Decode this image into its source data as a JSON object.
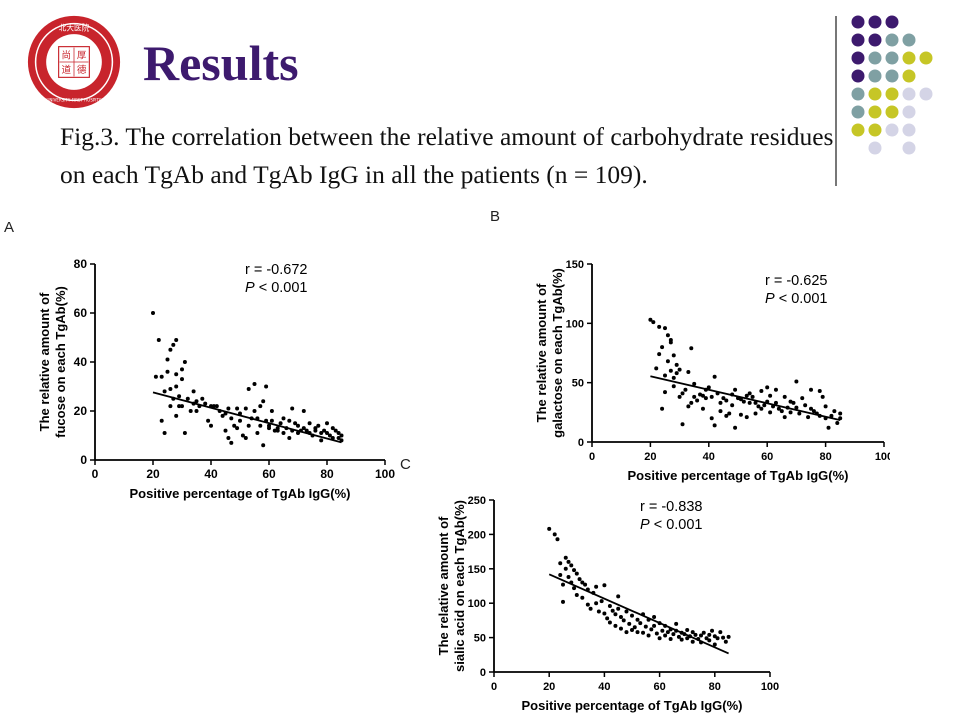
{
  "header": {
    "title": "Results",
    "caption": "Fig.3. The correlation between the relative amount of carbohydrate residues on each TgAb and TgAb IgG in all the patients (n = 109).",
    "logo": {
      "text_top": "北大医院",
      "center_chars": [
        "尚",
        "厚",
        "道",
        "德"
      ],
      "ring_text": "PEKING UNIVERSITY FIRST HOSPITAL ·1915·"
    },
    "panel_labels": [
      "A",
      "B",
      "C"
    ]
  },
  "decor": {
    "vertical_rule_color": "#777777",
    "dot_grid": [
      [
        "#3d1a6e",
        "#3d1a6e",
        "#3d1a6e",
        "",
        ""
      ],
      [
        "#3d1a6e",
        "#3d1a6e",
        "#7fa0a3",
        "#7fa0a3",
        ""
      ],
      [
        "#3d1a6e",
        "#7fa0a3",
        "#7fa0a3",
        "#c6c626",
        "#c6c626"
      ],
      [
        "#3d1a6e",
        "#7fa0a3",
        "#7fa0a3",
        "#c6c626",
        ""
      ],
      [
        "#7fa0a3",
        "#c6c626",
        "#c6c626",
        "#d4d4e6",
        "#d4d4e6"
      ],
      [
        "#7fa0a3",
        "#c6c626",
        "#c6c626",
        "#d4d4e6",
        ""
      ],
      [
        "#c6c626",
        "#c6c626",
        "#d4d4e6",
        "#d4d4e6",
        ""
      ],
      [
        "",
        "#d4d4e6",
        "",
        "#d4d4e6",
        ""
      ]
    ]
  },
  "chart_data": [
    {
      "type": "scatter",
      "panel": "A",
      "xlabel": "Positive percentage of TgAb IgG(%)",
      "ylabel": [
        "The relative amount of",
        "fucose on each TgAb(%)"
      ],
      "xlim": [
        0,
        100
      ],
      "ylim": [
        0,
        80
      ],
      "xticks": [
        0,
        20,
        40,
        60,
        80,
        100
      ],
      "yticks": [
        0,
        20,
        40,
        60,
        80
      ],
      "annotation": {
        "r_text": "r = -0.672",
        "p_label": "P",
        "p_text": " < 0.001"
      },
      "fit_line": [
        [
          20,
          27.6
        ],
        [
          85,
          7.2
        ]
      ],
      "points": [
        [
          20,
          60
        ],
        [
          21,
          34
        ],
        [
          22,
          49
        ],
        [
          23,
          34
        ],
        [
          23,
          16
        ],
        [
          24,
          28
        ],
        [
          24,
          11
        ],
        [
          25,
          41
        ],
        [
          25,
          36
        ],
        [
          26,
          45
        ],
        [
          26,
          29
        ],
        [
          26,
          22
        ],
        [
          27,
          25
        ],
        [
          27,
          47
        ],
        [
          28,
          49
        ],
        [
          28,
          35
        ],
        [
          28,
          30
        ],
        [
          28,
          18
        ],
        [
          29,
          26
        ],
        [
          29,
          22
        ],
        [
          30,
          37
        ],
        [
          30,
          33
        ],
        [
          30,
          22
        ],
        [
          31,
          40
        ],
        [
          31,
          11
        ],
        [
          32,
          25
        ],
        [
          33,
          20
        ],
        [
          34,
          23
        ],
        [
          34,
          28
        ],
        [
          35,
          24
        ],
        [
          35,
          20
        ],
        [
          36,
          22
        ],
        [
          37,
          25
        ],
        [
          38,
          23
        ],
        [
          39,
          16
        ],
        [
          40,
          22
        ],
        [
          40,
          14
        ],
        [
          41,
          22
        ],
        [
          42,
          22
        ],
        [
          43,
          20
        ],
        [
          44,
          18
        ],
        [
          45,
          12
        ],
        [
          45,
          19
        ],
        [
          46,
          21
        ],
        [
          46,
          9
        ],
        [
          47,
          17
        ],
        [
          47,
          7
        ],
        [
          48,
          14
        ],
        [
          49,
          13
        ],
        [
          49,
          21
        ],
        [
          50,
          16
        ],
        [
          50,
          19
        ],
        [
          51,
          10
        ],
        [
          52,
          9
        ],
        [
          52,
          21
        ],
        [
          53,
          29
        ],
        [
          53,
          14
        ],
        [
          54,
          17
        ],
        [
          55,
          20
        ],
        [
          55,
          31
        ],
        [
          56,
          17
        ],
        [
          56,
          11
        ],
        [
          57,
          22
        ],
        [
          57,
          14
        ],
        [
          58,
          24
        ],
        [
          58,
          6
        ],
        [
          59,
          30
        ],
        [
          59,
          16
        ],
        [
          60,
          14
        ],
        [
          60,
          13
        ],
        [
          61,
          16
        ],
        [
          61,
          20
        ],
        [
          62,
          12
        ],
        [
          63,
          12
        ],
        [
          63,
          13
        ],
        [
          64,
          15
        ],
        [
          65,
          17
        ],
        [
          65,
          11
        ],
        [
          66,
          13
        ],
        [
          67,
          9
        ],
        [
          67,
          16
        ],
        [
          68,
          21
        ],
        [
          68,
          12
        ],
        [
          69,
          15
        ],
        [
          70,
          14
        ],
        [
          70,
          11
        ],
        [
          71,
          12
        ],
        [
          72,
          20
        ],
        [
          72,
          13
        ],
        [
          73,
          12
        ],
        [
          74,
          11
        ],
        [
          74,
          15
        ],
        [
          75,
          10
        ],
        [
          76,
          12
        ],
        [
          76,
          13
        ],
        [
          77,
          14
        ],
        [
          78,
          11
        ],
        [
          78,
          8
        ],
        [
          79,
          12
        ],
        [
          80,
          11
        ],
        [
          80,
          15
        ],
        [
          81,
          10
        ],
        [
          82,
          9
        ],
        [
          82,
          13
        ],
        [
          83,
          12
        ],
        [
          84,
          9
        ],
        [
          84,
          11
        ],
        [
          85,
          10
        ],
        [
          85,
          8
        ]
      ]
    },
    {
      "type": "scatter",
      "panel": "B",
      "xlabel": "Positive percentage of TgAb IgG(%)",
      "ylabel": [
        "The relative amount of",
        "galactose on each TgAb(%)"
      ],
      "xlim": [
        0,
        100
      ],
      "ylim": [
        0,
        150
      ],
      "xticks": [
        0,
        20,
        40,
        60,
        80,
        100
      ],
      "yticks": [
        0,
        50,
        100,
        150
      ],
      "annotation": {
        "r_text": "r = -0.625",
        "p_label": "P",
        "p_text": " < 0.001"
      },
      "fit_line": [
        [
          20,
          55.4
        ],
        [
          85,
          18.4
        ]
      ],
      "points": [
        [
          20,
          103
        ],
        [
          21,
          101
        ],
        [
          22,
          62
        ],
        [
          23,
          97
        ],
        [
          23,
          74
        ],
        [
          24,
          28
        ],
        [
          24,
          80
        ],
        [
          25,
          96
        ],
        [
          25,
          42
        ],
        [
          25,
          56
        ],
        [
          26,
          90
        ],
        [
          26,
          68
        ],
        [
          27,
          86
        ],
        [
          27,
          60
        ],
        [
          27,
          84
        ],
        [
          28,
          73
        ],
        [
          28,
          54
        ],
        [
          28,
          47
        ],
        [
          29,
          58
        ],
        [
          29,
          65
        ],
        [
          30,
          61
        ],
        [
          30,
          38
        ],
        [
          31,
          41
        ],
        [
          31,
          15
        ],
        [
          32,
          44
        ],
        [
          33,
          59
        ],
        [
          33,
          30
        ],
        [
          34,
          79
        ],
        [
          34,
          33
        ],
        [
          35,
          38
        ],
        [
          35,
          49
        ],
        [
          36,
          35
        ],
        [
          37,
          40
        ],
        [
          38,
          39
        ],
        [
          38,
          28
        ],
        [
          39,
          37
        ],
        [
          39,
          44
        ],
        [
          40,
          46
        ],
        [
          41,
          38
        ],
        [
          41,
          20
        ],
        [
          42,
          55
        ],
        [
          42,
          14
        ],
        [
          43,
          41
        ],
        [
          44,
          33
        ],
        [
          44,
          26
        ],
        [
          45,
          37
        ],
        [
          46,
          35
        ],
        [
          46,
          22
        ],
        [
          47,
          24
        ],
        [
          48,
          31
        ],
        [
          48,
          40
        ],
        [
          49,
          44
        ],
        [
          49,
          12
        ],
        [
          50,
          37
        ],
        [
          51,
          23
        ],
        [
          51,
          36
        ],
        [
          52,
          34
        ],
        [
          53,
          39
        ],
        [
          53,
          21
        ],
        [
          54,
          41
        ],
        [
          54,
          33
        ],
        [
          55,
          38
        ],
        [
          56,
          33
        ],
        [
          56,
          24
        ],
        [
          57,
          30
        ],
        [
          58,
          43
        ],
        [
          58,
          28
        ],
        [
          59,
          31
        ],
        [
          60,
          46
        ],
        [
          60,
          34
        ],
        [
          61,
          25
        ],
        [
          61,
          39
        ],
        [
          62,
          30
        ],
        [
          63,
          44
        ],
        [
          63,
          33
        ],
        [
          64,
          28
        ],
        [
          65,
          26
        ],
        [
          66,
          38
        ],
        [
          66,
          21
        ],
        [
          67,
          29
        ],
        [
          68,
          25
        ],
        [
          68,
          34
        ],
        [
          69,
          33
        ],
        [
          70,
          29
        ],
        [
          70,
          51
        ],
        [
          71,
          24
        ],
        [
          72,
          37
        ],
        [
          73,
          31
        ],
        [
          74,
          21
        ],
        [
          75,
          44
        ],
        [
          75,
          28
        ],
        [
          76,
          26
        ],
        [
          77,
          24
        ],
        [
          78,
          43
        ],
        [
          78,
          22
        ],
        [
          79,
          38
        ],
        [
          80,
          20
        ],
        [
          80,
          30
        ],
        [
          81,
          12
        ],
        [
          82,
          22
        ],
        [
          83,
          26
        ],
        [
          84,
          16
        ],
        [
          85,
          24
        ],
        [
          85,
          20
        ]
      ]
    },
    {
      "type": "scatter",
      "panel": "C",
      "xlabel": "Positive percentage of TgAb IgG(%)",
      "ylabel": [
        "The relative amount of",
        "sialic acid on each TgAb(%)"
      ],
      "xlim": [
        0,
        100
      ],
      "ylim": [
        0,
        250
      ],
      "xticks": [
        0,
        20,
        40,
        60,
        80,
        100
      ],
      "yticks": [
        0,
        50,
        100,
        150,
        200,
        250
      ],
      "annotation": {
        "r_text": "r = -0.838",
        "p_label": "P",
        "p_text": " < 0.001"
      },
      "fit_line": [
        [
          20,
          142
        ],
        [
          85,
          27
        ]
      ],
      "points": [
        [
          20,
          208
        ],
        [
          22,
          200
        ],
        [
          23,
          193
        ],
        [
          24,
          141
        ],
        [
          24,
          158
        ],
        [
          25,
          127
        ],
        [
          25,
          102
        ],
        [
          26,
          166
        ],
        [
          26,
          150
        ],
        [
          27,
          160
        ],
        [
          27,
          138
        ],
        [
          28,
          155
        ],
        [
          28,
          130
        ],
        [
          29,
          148
        ],
        [
          29,
          122
        ],
        [
          30,
          143
        ],
        [
          30,
          112
        ],
        [
          31,
          135
        ],
        [
          32,
          130
        ],
        [
          32,
          108
        ],
        [
          33,
          127
        ],
        [
          34,
          98
        ],
        [
          34,
          120
        ],
        [
          35,
          92
        ],
        [
          36,
          115
        ],
        [
          37,
          100
        ],
        [
          37,
          124
        ],
        [
          38,
          88
        ],
        [
          39,
          103
        ],
        [
          40,
          126
        ],
        [
          40,
          85
        ],
        [
          41,
          78
        ],
        [
          42,
          96
        ],
        [
          42,
          72
        ],
        [
          43,
          89
        ],
        [
          44,
          84
        ],
        [
          44,
          67
        ],
        [
          45,
          92
        ],
        [
          45,
          110
        ],
        [
          46,
          80
        ],
        [
          46,
          63
        ],
        [
          47,
          75
        ],
        [
          48,
          88
        ],
        [
          48,
          58
        ],
        [
          49,
          70
        ],
        [
          50,
          82
        ],
        [
          50,
          61
        ],
        [
          51,
          65
        ],
        [
          52,
          58
        ],
        [
          52,
          76
        ],
        [
          53,
          71
        ],
        [
          54,
          84
        ],
        [
          54,
          57
        ],
        [
          55,
          66
        ],
        [
          56,
          76
        ],
        [
          56,
          53
        ],
        [
          57,
          62
        ],
        [
          58,
          67
        ],
        [
          58,
          80
        ],
        [
          59,
          56
        ],
        [
          60,
          71
        ],
        [
          60,
          49
        ],
        [
          61,
          60
        ],
        [
          62,
          67
        ],
        [
          62,
          53
        ],
        [
          63,
          58
        ],
        [
          64,
          62
        ],
        [
          64,
          48
        ],
        [
          65,
          55
        ],
        [
          66,
          60
        ],
        [
          66,
          70
        ],
        [
          67,
          51
        ],
        [
          68,
          57
        ],
        [
          68,
          47
        ],
        [
          69,
          55
        ],
        [
          70,
          61
        ],
        [
          70,
          49
        ],
        [
          71,
          52
        ],
        [
          72,
          58
        ],
        [
          72,
          44
        ],
        [
          73,
          54
        ],
        [
          74,
          48
        ],
        [
          75,
          53
        ],
        [
          75,
          43
        ],
        [
          76,
          57
        ],
        [
          77,
          49
        ],
        [
          78,
          46
        ],
        [
          78,
          54
        ],
        [
          79,
          60
        ],
        [
          80,
          52
        ],
        [
          80,
          40
        ],
        [
          81,
          49
        ],
        [
          82,
          58
        ],
        [
          83,
          50
        ],
        [
          84,
          44
        ],
        [
          85,
          51
        ]
      ]
    }
  ]
}
